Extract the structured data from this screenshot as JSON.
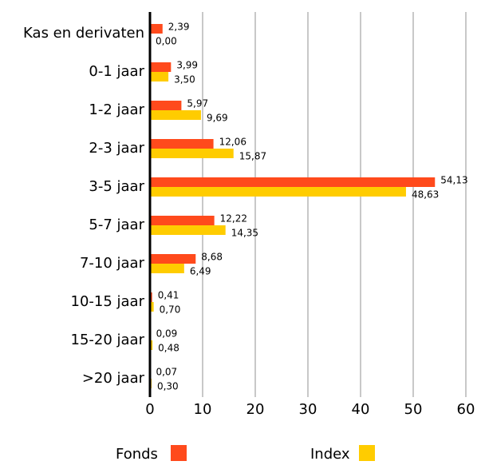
{
  "chart_data": {
    "type": "hbar",
    "categories": [
      "Kas en derivaten",
      "0-1 jaar",
      "1-2 jaar",
      "2-3 jaar",
      "3-5 jaar",
      "5-7 jaar",
      "7-10 jaar",
      "10-15 jaar",
      "15-20 jaar",
      ">20 jaar"
    ],
    "series": [
      {
        "name": "Fonds",
        "color": "#ff4a1c",
        "values": [
          2.39,
          3.99,
          5.97,
          12.06,
          54.13,
          12.22,
          8.68,
          0.41,
          0.09,
          0.07
        ],
        "value_labels": [
          "2,39",
          "3,99",
          "5,97",
          "12,06",
          "54,13",
          "12,22",
          "8,68",
          "0,41",
          "0,09",
          "0,07"
        ]
      },
      {
        "name": "Index",
        "color": "#ffcc00",
        "values": [
          0.0,
          3.5,
          9.69,
          15.87,
          48.63,
          14.35,
          6.49,
          0.7,
          0.48,
          0.3
        ],
        "value_labels": [
          "0,00",
          "3,50",
          "9,69",
          "15,87",
          "48,63",
          "14,35",
          "6,49",
          "0,70",
          "0,48",
          "0,30"
        ]
      }
    ],
    "xlim": [
      0,
      60
    ],
    "xticks": [
      0,
      10,
      20,
      30,
      40,
      50,
      60
    ],
    "grid": true
  }
}
